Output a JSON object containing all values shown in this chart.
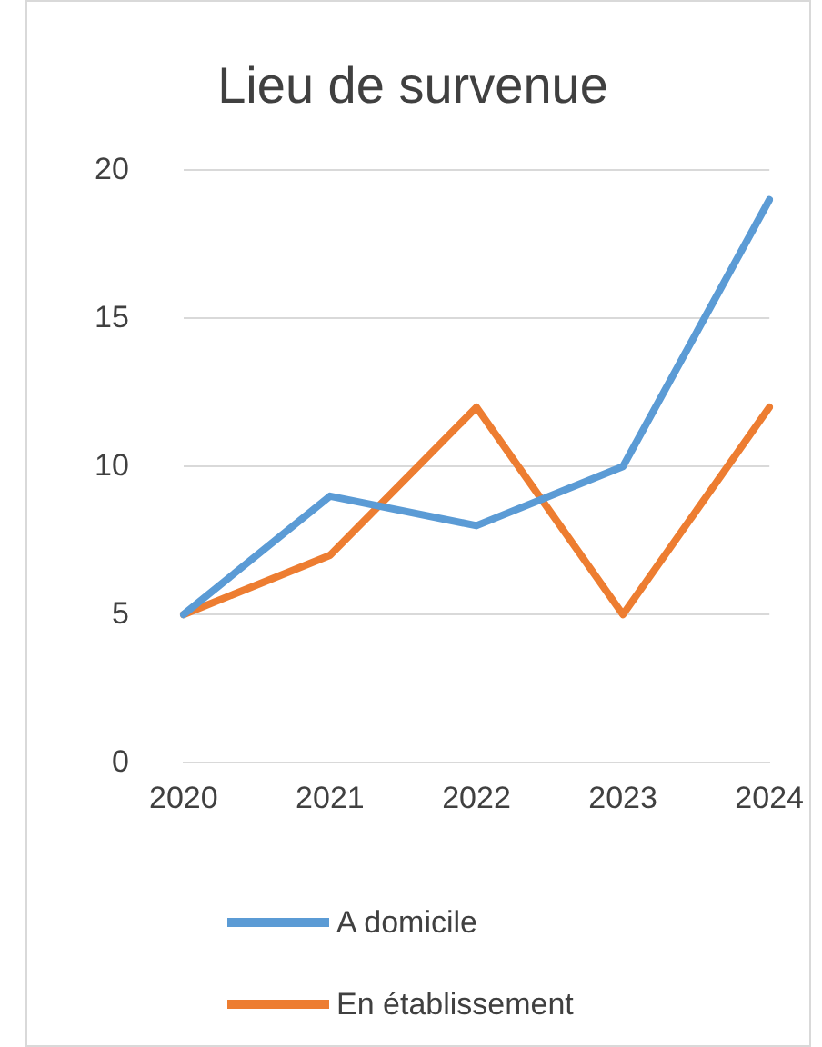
{
  "chart_data": {
    "type": "line",
    "title": "Lieu de survenue",
    "categories": [
      "2020",
      "2021",
      "2022",
      "2023",
      "2024"
    ],
    "series": [
      {
        "name": "A domicile",
        "color": "#5b9bd5",
        "values": [
          5,
          9,
          8,
          10,
          19
        ]
      },
      {
        "name": "En établissement",
        "color": "#ed7d31",
        "values": [
          5,
          7,
          12,
          5,
          12
        ]
      }
    ],
    "ylim": [
      0,
      20
    ],
    "yticks": [
      0,
      5,
      10,
      15,
      20
    ],
    "grid": "y",
    "legend": "bottom",
    "marker": "none",
    "line_style": "solid"
  }
}
